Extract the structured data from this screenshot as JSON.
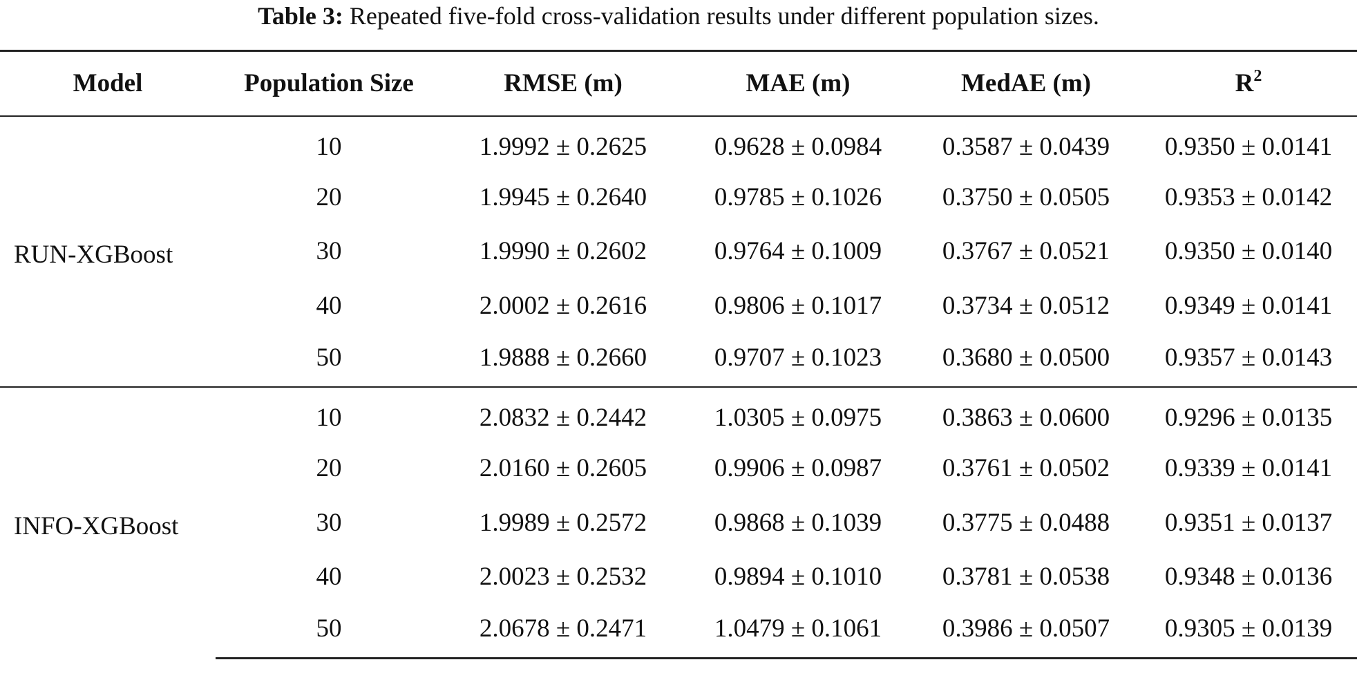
{
  "caption": {
    "label": "Table 3:",
    "text": " Repeated five-fold cross-validation results under different population sizes."
  },
  "table": {
    "headers": {
      "model": "Model",
      "population_size": "Population Size",
      "rmse": "RMSE (m)",
      "mae": "MAE (m)",
      "medae": "MedAE (m)",
      "r2_base": "R",
      "r2_sup": "2"
    },
    "groups": [
      {
        "model": "RUN-XGBoost",
        "rows": [
          {
            "pop": "10",
            "rmse": "1.9992 ± 0.2625",
            "mae": "0.9628 ± 0.0984",
            "medae": "0.3587 ± 0.0439",
            "r2": "0.9350 ± 0.0141"
          },
          {
            "pop": "20",
            "rmse": "1.9945 ± 0.2640",
            "mae": "0.9785 ± 0.1026",
            "medae": "0.3750 ± 0.0505",
            "r2": "0.9353 ± 0.0142"
          },
          {
            "pop": "30",
            "rmse": "1.9990 ± 0.2602",
            "mae": "0.9764 ± 0.1009",
            "medae": "0.3767 ± 0.0521",
            "r2": "0.9350 ± 0.0140"
          },
          {
            "pop": "40",
            "rmse": "2.0002 ± 0.2616",
            "mae": "0.9806 ± 0.1017",
            "medae": "0.3734 ± 0.0512",
            "r2": "0.9349 ± 0.0141"
          },
          {
            "pop": "50",
            "rmse": "1.9888 ± 0.2660",
            "mae": "0.9707 ± 0.1023",
            "medae": "0.3680 ± 0.0500",
            "r2": "0.9357 ± 0.0143"
          }
        ]
      },
      {
        "model": "INFO-XGBoost",
        "rows": [
          {
            "pop": "10",
            "rmse": "2.0832 ± 0.2442",
            "mae": "1.0305 ± 0.0975",
            "medae": "0.3863 ± 0.0600",
            "r2": "0.9296 ± 0.0135"
          },
          {
            "pop": "20",
            "rmse": "2.0160 ± 0.2605",
            "mae": "0.9906 ± 0.0987",
            "medae": "0.3761 ± 0.0502",
            "r2": "0.9339 ± 0.0141"
          },
          {
            "pop": "30",
            "rmse": "1.9989 ± 0.2572",
            "mae": "0.9868 ± 0.1039",
            "medae": "0.3775 ± 0.0488",
            "r2": "0.9351 ± 0.0137"
          },
          {
            "pop": "40",
            "rmse": "2.0023 ± 0.2532",
            "mae": "0.9894 ± 0.1010",
            "medae": "0.3781 ± 0.0538",
            "r2": "0.9348 ± 0.0136"
          },
          {
            "pop": "50",
            "rmse": "2.0678 ± 0.2471",
            "mae": "1.0479 ± 0.1061",
            "medae": "0.3986 ± 0.0507",
            "r2": "0.9305 ± 0.0139"
          }
        ]
      }
    ]
  }
}
